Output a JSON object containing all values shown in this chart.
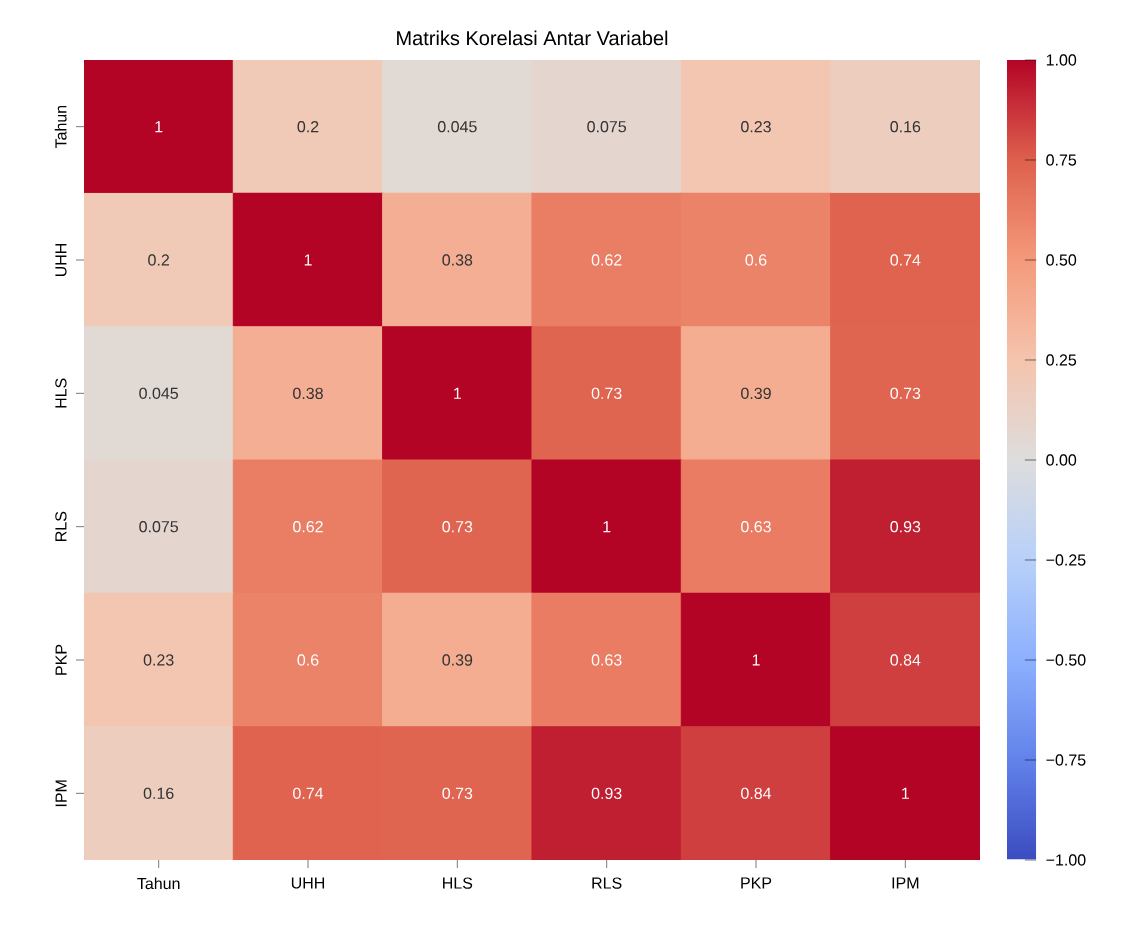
{
  "chart_data": {
    "type": "heatmap",
    "title": "Matriks Korelasi Antar Variabel",
    "categories": [
      "Tahun",
      "UHH",
      "HLS",
      "RLS",
      "PKP",
      "IPM"
    ],
    "y_categories": [
      "Tahun",
      "UHH",
      "HLS",
      "RLS",
      "PKP",
      "IPM"
    ],
    "cells": [
      [
        1,
        0.2,
        0.045,
        0.075,
        0.23,
        0.16
      ],
      [
        0.2,
        1,
        0.38,
        0.62,
        0.6,
        0.74
      ],
      [
        0.045,
        0.38,
        1,
        0.73,
        0.39,
        0.73
      ],
      [
        0.075,
        0.62,
        0.73,
        1,
        0.63,
        0.93
      ],
      [
        0.23,
        0.6,
        0.39,
        0.63,
        1,
        0.84
      ],
      [
        0.16,
        0.74,
        0.73,
        0.93,
        0.84,
        1
      ]
    ],
    "data_labels": true,
    "clim": [
      -1,
      1
    ],
    "cticks": [
      {
        "value": -1,
        "label": "−1.00"
      },
      {
        "value": -0.75,
        "label": "−0.75"
      },
      {
        "value": -0.5,
        "label": "−0.50"
      },
      {
        "value": -0.25,
        "label": "−0.25"
      },
      {
        "value": 0,
        "label": "0.00"
      },
      {
        "value": 0.25,
        "label": "0.25"
      },
      {
        "value": 0.5,
        "label": "0.50"
      },
      {
        "value": 0.75,
        "label": "0.75"
      },
      {
        "value": 1,
        "label": "1.00"
      }
    ]
  }
}
